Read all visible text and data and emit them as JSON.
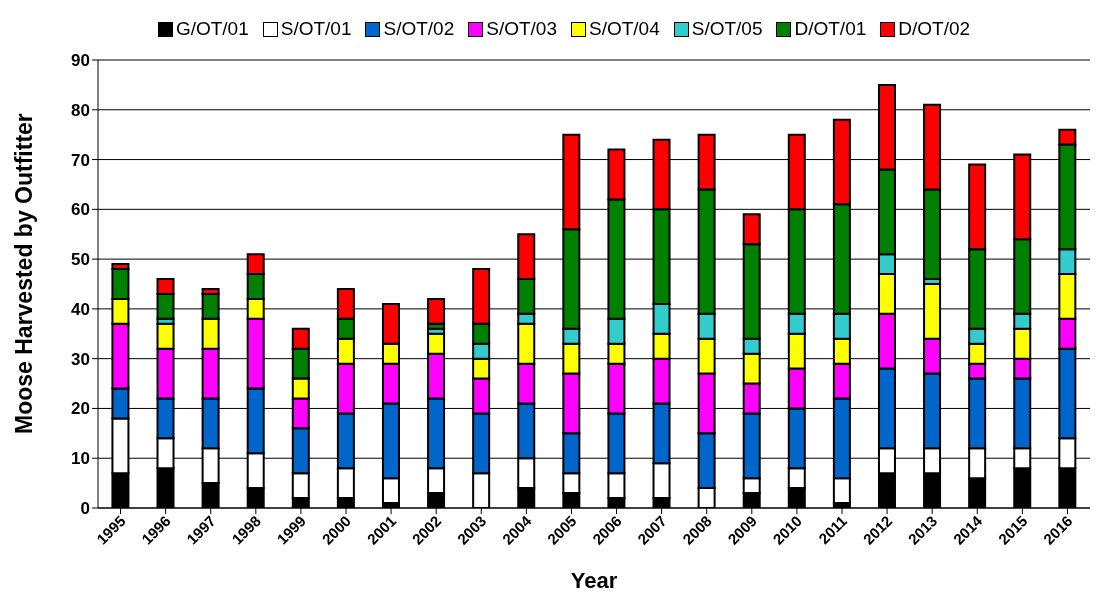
{
  "chart_data": {
    "type": "bar",
    "stacked": true,
    "xlabel": "Year",
    "ylabel": "Moose Harvested by Outfitter",
    "categories": [
      "1995",
      "1996",
      "1997",
      "1998",
      "1999",
      "2000",
      "2001",
      "2002",
      "2003",
      "2004",
      "2005",
      "2006",
      "2007",
      "2008",
      "2009",
      "2010",
      "2011",
      "2012",
      "2013",
      "2014",
      "2015",
      "2016"
    ],
    "series": [
      {
        "name": "G/OT/01",
        "color": "#000000",
        "values": [
          7,
          8,
          5,
          4,
          2,
          2,
          1,
          3,
          0,
          4,
          3,
          2,
          2,
          0,
          3,
          4,
          1,
          7,
          7,
          6,
          8,
          8
        ]
      },
      {
        "name": "S/OT/01",
        "color": "#ffffff",
        "values": [
          11,
          6,
          7,
          7,
          5,
          6,
          5,
          5,
          7,
          6,
          4,
          5,
          7,
          4,
          3,
          4,
          5,
          5,
          5,
          6,
          4,
          6
        ]
      },
      {
        "name": "S/OT/02",
        "color": "#0066cc",
        "values": [
          6,
          8,
          10,
          13,
          9,
          11,
          15,
          14,
          12,
          11,
          8,
          12,
          12,
          11,
          13,
          12,
          16,
          16,
          15,
          14,
          14,
          18
        ]
      },
      {
        "name": "S/OT/03",
        "color": "#ff00ff",
        "values": [
          13,
          10,
          10,
          14,
          6,
          10,
          8,
          9,
          7,
          8,
          12,
          10,
          9,
          12,
          6,
          8,
          7,
          11,
          7,
          3,
          4,
          6
        ]
      },
      {
        "name": "S/OT/04",
        "color": "#ffff00",
        "values": [
          5,
          5,
          6,
          4,
          4,
          5,
          4,
          4,
          4,
          8,
          6,
          4,
          5,
          7,
          6,
          7,
          5,
          8,
          11,
          4,
          6,
          9
        ]
      },
      {
        "name": "S/OT/05",
        "color": "#33cccc",
        "values": [
          0,
          1,
          0,
          0,
          0,
          0,
          0,
          1,
          3,
          2,
          3,
          5,
          6,
          5,
          3,
          4,
          5,
          4,
          1,
          3,
          3,
          5
        ]
      },
      {
        "name": "D/OT/01",
        "color": "#008000",
        "values": [
          6,
          5,
          5,
          5,
          6,
          4,
          0,
          1,
          4,
          7,
          20,
          24,
          19,
          25,
          19,
          21,
          22,
          17,
          18,
          16,
          15,
          21
        ]
      },
      {
        "name": "D/OT/02",
        "color": "#ff0000",
        "values": [
          1,
          3,
          1,
          4,
          4,
          6,
          8,
          5,
          11,
          9,
          19,
          10,
          14,
          11,
          6,
          15,
          17,
          17,
          17,
          17,
          17,
          3
        ]
      }
    ],
    "ylim": [
      0,
      90
    ],
    "yticks": [
      0,
      10,
      20,
      30,
      40,
      50,
      60,
      70,
      80,
      90
    ],
    "grid": "y",
    "legend": "top"
  }
}
